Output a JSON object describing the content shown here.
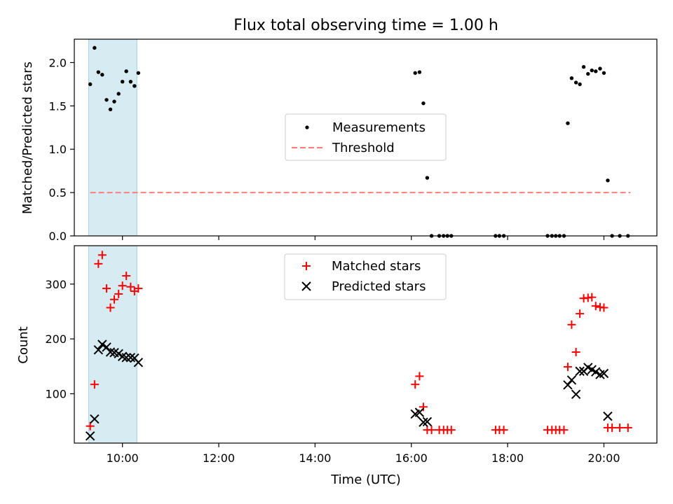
{
  "chart_data": [
    {
      "type": "scatter",
      "title": "Flux total observing time = 1.00 h",
      "ylabel": "Matched/Predicted stars",
      "xlabel": "",
      "xlim": [
        9.0,
        21.1
      ],
      "ylim": [
        0.0,
        2.27
      ],
      "x_ticks": [
        10,
        12,
        14,
        16,
        18,
        20
      ],
      "x_tick_labels": [],
      "y_ticks": [
        0.0,
        0.5,
        1.0,
        1.5,
        2.0
      ],
      "y_tick_labels": [
        "0.0",
        "0.5",
        "1.0",
        "1.5",
        "2.0"
      ],
      "shaded_span": [
        9.3,
        10.3
      ],
      "series": [
        {
          "name": "Measurements",
          "marker": "dot",
          "color": "#000000",
          "points": [
            [
              9.33,
              1.75
            ],
            [
              9.42,
              2.17
            ],
            [
              9.5,
              1.89
            ],
            [
              9.58,
              1.86
            ],
            [
              9.67,
              1.57
            ],
            [
              9.75,
              1.46
            ],
            [
              9.83,
              1.55
            ],
            [
              9.92,
              1.64
            ],
            [
              10.0,
              1.78
            ],
            [
              10.08,
              1.9
            ],
            [
              10.17,
              1.78
            ],
            [
              10.25,
              1.73
            ],
            [
              10.33,
              1.88
            ],
            [
              16.08,
              1.88
            ],
            [
              16.17,
              1.89
            ],
            [
              16.25,
              1.53
            ],
            [
              16.33,
              0.67
            ],
            [
              16.42,
              0.0
            ],
            [
              16.58,
              0.0
            ],
            [
              16.67,
              0.0
            ],
            [
              16.75,
              0.0
            ],
            [
              16.83,
              0.0
            ],
            [
              17.75,
              0.0
            ],
            [
              17.83,
              0.0
            ],
            [
              17.92,
              0.0
            ],
            [
              18.83,
              0.0
            ],
            [
              18.92,
              0.0
            ],
            [
              19.0,
              0.0
            ],
            [
              19.08,
              0.0
            ],
            [
              19.17,
              0.0
            ],
            [
              19.25,
              1.3
            ],
            [
              19.33,
              1.82
            ],
            [
              19.42,
              1.77
            ],
            [
              19.5,
              1.75
            ],
            [
              19.58,
              1.95
            ],
            [
              19.67,
              1.87
            ],
            [
              19.75,
              1.91
            ],
            [
              19.83,
              1.9
            ],
            [
              19.92,
              1.93
            ],
            [
              20.0,
              1.88
            ],
            [
              20.08,
              0.64
            ],
            [
              20.17,
              0.0
            ],
            [
              20.33,
              0.0
            ],
            [
              20.5,
              0.0
            ]
          ]
        },
        {
          "name": "Threshold",
          "marker": "dashed-line",
          "color": "#ff7f7f",
          "points": [
            [
              9.33,
              0.5
            ],
            [
              20.55,
              0.5
            ]
          ]
        }
      ],
      "legend": "center-right",
      "grid": false
    },
    {
      "type": "scatter",
      "title": "",
      "ylabel": "Count",
      "xlabel": "Time (UTC)",
      "xlim": [
        9.0,
        21.1
      ],
      "ylim": [
        10,
        370
      ],
      "x_ticks": [
        10,
        12,
        14,
        16,
        18,
        20
      ],
      "x_tick_labels": [
        "10:00",
        "12:00",
        "14:00",
        "16:00",
        "18:00",
        "20:00"
      ],
      "y_ticks": [
        100,
        200,
        300
      ],
      "y_tick_labels": [
        "100",
        "200",
        "300"
      ],
      "shaded_span": [
        9.3,
        10.3
      ],
      "series": [
        {
          "name": "Matched stars",
          "marker": "plus",
          "color": "#ff0000",
          "points": [
            [
              9.33,
              41
            ],
            [
              9.42,
              117
            ],
            [
              9.5,
              337
            ],
            [
              9.58,
              353
            ],
            [
              9.67,
              292
            ],
            [
              9.75,
              257
            ],
            [
              9.83,
              272
            ],
            [
              9.92,
              282
            ],
            [
              10.0,
              297
            ],
            [
              10.08,
              315
            ],
            [
              10.17,
              295
            ],
            [
              10.25,
              287
            ],
            [
              10.33,
              292
            ],
            [
              16.08,
              117
            ],
            [
              16.17,
              132
            ],
            [
              16.25,
              76
            ],
            [
              16.33,
              34
            ],
            [
              16.42,
              34
            ],
            [
              16.58,
              34
            ],
            [
              16.67,
              34
            ],
            [
              16.75,
              34
            ],
            [
              16.83,
              34
            ],
            [
              17.75,
              34
            ],
            [
              17.83,
              34
            ],
            [
              17.92,
              34
            ],
            [
              18.83,
              34
            ],
            [
              18.92,
              34
            ],
            [
              19.0,
              34
            ],
            [
              19.08,
              34
            ],
            [
              19.17,
              34
            ],
            [
              19.25,
              149
            ],
            [
              19.33,
              226
            ],
            [
              19.42,
              176
            ],
            [
              19.5,
              246
            ],
            [
              19.58,
              274
            ],
            [
              19.67,
              275
            ],
            [
              19.75,
              276
            ],
            [
              19.83,
              260
            ],
            [
              19.92,
              258
            ],
            [
              20.0,
              257
            ],
            [
              20.08,
              38
            ],
            [
              20.17,
              38
            ],
            [
              20.33,
              38
            ],
            [
              20.5,
              38
            ]
          ]
        },
        {
          "name": "Predicted stars",
          "marker": "x",
          "color": "#000000",
          "points": [
            [
              9.33,
              23
            ],
            [
              9.42,
              54
            ],
            [
              9.5,
              180
            ],
            [
              9.58,
              190
            ],
            [
              9.67,
              185
            ],
            [
              9.75,
              176
            ],
            [
              9.83,
              175
            ],
            [
              9.92,
              173
            ],
            [
              10.0,
              168
            ],
            [
              10.08,
              166
            ],
            [
              10.17,
              166
            ],
            [
              10.25,
              165
            ],
            [
              10.33,
              157
            ],
            [
              16.08,
              63
            ],
            [
              16.17,
              66
            ],
            [
              16.25,
              48
            ],
            [
              16.33,
              49
            ],
            [
              19.25,
              116
            ],
            [
              19.33,
              125
            ],
            [
              19.42,
              99
            ],
            [
              19.5,
              141
            ],
            [
              19.58,
              141
            ],
            [
              19.67,
              148
            ],
            [
              19.75,
              144
            ],
            [
              19.83,
              140
            ],
            [
              19.92,
              135
            ],
            [
              20.0,
              137
            ],
            [
              20.08,
              59
            ]
          ]
        }
      ],
      "legend": "top-center",
      "grid": false
    }
  ]
}
